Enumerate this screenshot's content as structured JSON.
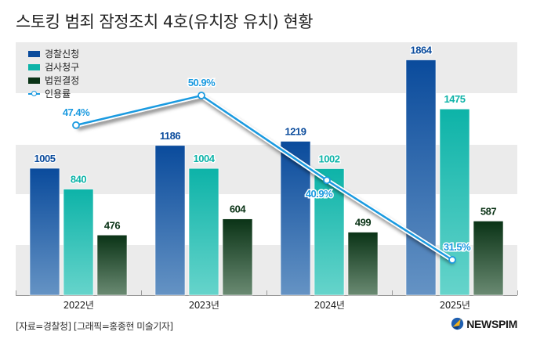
{
  "header": {
    "title": "스토킹 범죄 잠정조치 4호(유치장 유치) 현황"
  },
  "footer": {
    "source": "[자료=경찰청] [그래픽=홍종현 미술기자]",
    "logo": "NEWSPIM"
  },
  "legend": [
    {
      "label": "경찰신청",
      "color": "#0a4b9c"
    },
    {
      "label": "검사청구",
      "color": "#0db3a8"
    },
    {
      "label": "법원결정",
      "color": "#0a3316"
    },
    {
      "label": "인용률",
      "color": "#1a9ae0"
    }
  ],
  "chart_data": {
    "type": "bar",
    "title": "스토킹 범죄 잠정조치 4호(유치장 유치) 현황",
    "categories": [
      "2022년",
      "2023년",
      "2024년",
      "2025년"
    ],
    "series": [
      {
        "name": "경찰신청",
        "values": [
          1005,
          1186,
          1219,
          1864
        ],
        "color": "#0a4b9c"
      },
      {
        "name": "검사청구",
        "values": [
          840,
          1004,
          1002,
          1475
        ],
        "color": "#0db3a8"
      },
      {
        "name": "법원결정",
        "values": [
          476,
          604,
          499,
          587
        ],
        "color": "#0a3316"
      }
    ],
    "line_series": {
      "name": "인용률",
      "type": "line",
      "values": [
        47.4,
        50.9,
        40.9,
        31.5
      ],
      "labels": [
        "47.4%",
        "50.9%",
        "40.9%",
        "31.5%"
      ],
      "color": "#1a9ae0"
    },
    "xlabel": "",
    "ylabel": "",
    "ylim": [
      0,
      2000
    ],
    "grid": "alternating bands",
    "legend_position": "top-left"
  }
}
